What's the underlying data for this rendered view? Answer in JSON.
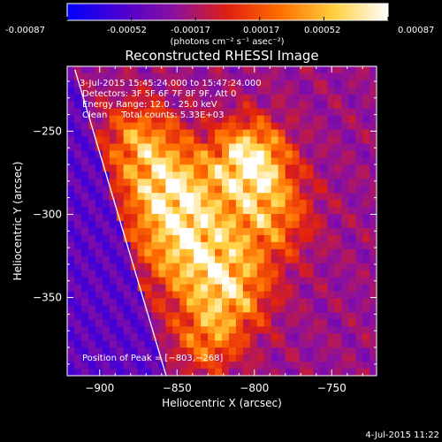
{
  "colorbar": {
    "ticks": [
      "-0.00087",
      "-0.00052",
      "-0.00017",
      "0.00017",
      "0.00052",
      "0.00087"
    ],
    "unit_label": "(photons cm⁻² s⁻¹ asec⁻²)",
    "stops": [
      "#0000ff",
      "#4a00d0",
      "#8a10a0",
      "#e02010",
      "#ff7000",
      "#ffd040",
      "#ffffff"
    ]
  },
  "chart_data": {
    "type": "heatmap",
    "title": "Reconstructed RHESSI Image",
    "xlabel": "Heliocentric X (arcsec)",
    "ylabel": "Heliocentric Y (arcsec)",
    "xlim": [
      -921,
      -721
    ],
    "ylim": [
      -397,
      -211
    ],
    "xticks": [
      -900,
      -850,
      -800,
      -750
    ],
    "yticks": [
      -250,
      -300,
      -350
    ],
    "xtick_labels": [
      "−900",
      "−850",
      "−800",
      "−750"
    ],
    "ytick_labels": [
      "−250",
      "−300",
      "−350"
    ],
    "colorbar_range": [
      -0.00087,
      0.00087
    ],
    "peak": [
      -803,
      -268
    ],
    "limb": [
      [
        -916,
        -213
      ],
      [
        -857,
        -397
      ]
    ],
    "annotations": [
      "3-Jul-2015 15:45:24.000 to 15:47:24.000",
      "Detectors: 3F 5F 6F 7F 8F 9F, Att 0",
      "Energy Range: 12.0 - 25.0 keV",
      "Clean     Total counts: 5.33E+03"
    ],
    "peak_label": "Position of Peak = [−803,−268]"
  },
  "footer": {
    "timestamp": "4-Jul-2015 11:22"
  }
}
